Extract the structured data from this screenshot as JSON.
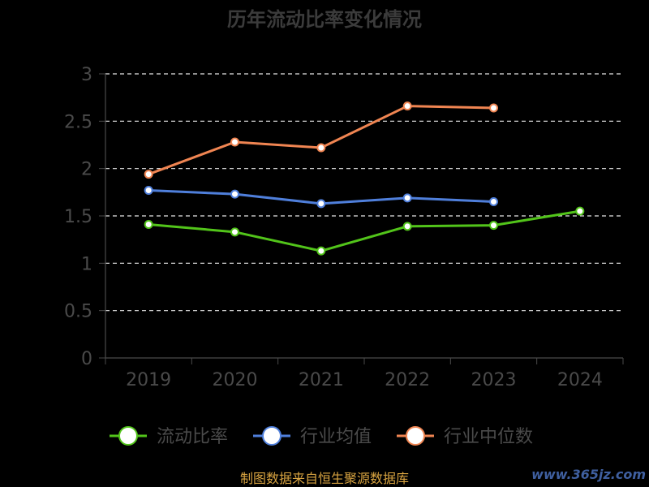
{
  "chart_data": {
    "type": "line",
    "title": "历年流动比率变化情况",
    "categories": [
      "2019",
      "2020",
      "2021",
      "2022",
      "2023",
      "2024"
    ],
    "ylim": [
      0,
      3
    ],
    "yticks": [
      "0",
      "0.5",
      "1",
      "1.5",
      "2",
      "2.5",
      "3"
    ],
    "grid": true,
    "legend_position": "bottom",
    "series": [
      {
        "name": "流动比率",
        "color": "#52c41a",
        "values": [
          1.41,
          1.33,
          1.13,
          1.39,
          1.4,
          1.55
        ]
      },
      {
        "name": "行业均值",
        "color": "#4f7fdb",
        "values": [
          1.77,
          1.73,
          1.63,
          1.69,
          1.65,
          null
        ]
      },
      {
        "name": "行业中位数",
        "color": "#f08552",
        "values": [
          1.94,
          2.28,
          2.22,
          2.66,
          2.64,
          null
        ]
      }
    ]
  },
  "footer": {
    "source": "制图数据来自恒生聚源数据库"
  },
  "watermark": {
    "text": "www.365jz.com"
  }
}
